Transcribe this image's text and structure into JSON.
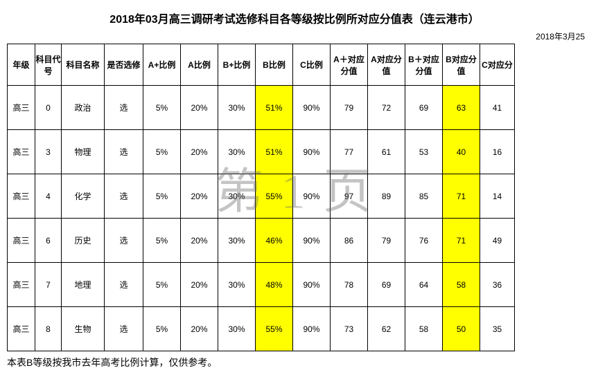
{
  "title": "2018年03月高三调研考试选修科目各等级按比例所对应分值表（连云港市）",
  "date": "2018年3月25",
  "watermark": "第 1 页",
  "footnote": "本表B等级按我市去年高考比例计算，仅供参考。",
  "columns": [
    "年级",
    "科目代号",
    "科目名称",
    "是否选修",
    "A+比例",
    "A比例",
    "B+比例",
    "B比例",
    "C比例",
    "A＋对应分值",
    "A对应分值",
    "B＋对应分值",
    "B对应分值",
    "C对应分"
  ],
  "highlight_columns": [
    7,
    12
  ],
  "rows": [
    {
      "grade": "高三",
      "code": "0",
      "name": "政治",
      "elect": "选",
      "ap": "5%",
      "a": "20%",
      "bp": "30%",
      "b": "51%",
      "c": "90%",
      "apv": "79",
      "av": "72",
      "bpv": "69",
      "bv": "63",
      "cv": "41"
    },
    {
      "grade": "高三",
      "code": "3",
      "name": "物理",
      "elect": "选",
      "ap": "5%",
      "a": "20%",
      "bp": "30%",
      "b": "51%",
      "c": "90%",
      "apv": "77",
      "av": "61",
      "bpv": "53",
      "bv": "40",
      "cv": "16"
    },
    {
      "grade": "高三",
      "code": "4",
      "name": "化学",
      "elect": "选",
      "ap": "5%",
      "a": "20%",
      "bp": "30%",
      "b": "55%",
      "c": "90%",
      "apv": "97",
      "av": "89",
      "bpv": "85",
      "bv": "71",
      "cv": "14"
    },
    {
      "grade": "高三",
      "code": "6",
      "name": "历史",
      "elect": "选",
      "ap": "5%",
      "a": "20%",
      "bp": "30%",
      "b": "46%",
      "c": "90%",
      "apv": "86",
      "av": "79",
      "bpv": "76",
      "bv": "71",
      "cv": "49"
    },
    {
      "grade": "高三",
      "code": "7",
      "name": "地理",
      "elect": "选",
      "ap": "5%",
      "a": "20%",
      "bp": "30%",
      "b": "48%",
      "c": "90%",
      "apv": "78",
      "av": "69",
      "bpv": "64",
      "bv": "58",
      "cv": "36"
    },
    {
      "grade": "高三",
      "code": "8",
      "name": "生物",
      "elect": "选",
      "ap": "5%",
      "a": "20%",
      "bp": "30%",
      "b": "55%",
      "c": "90%",
      "apv": "73",
      "av": "62",
      "bpv": "58",
      "bv": "50",
      "cv": "35"
    }
  ]
}
